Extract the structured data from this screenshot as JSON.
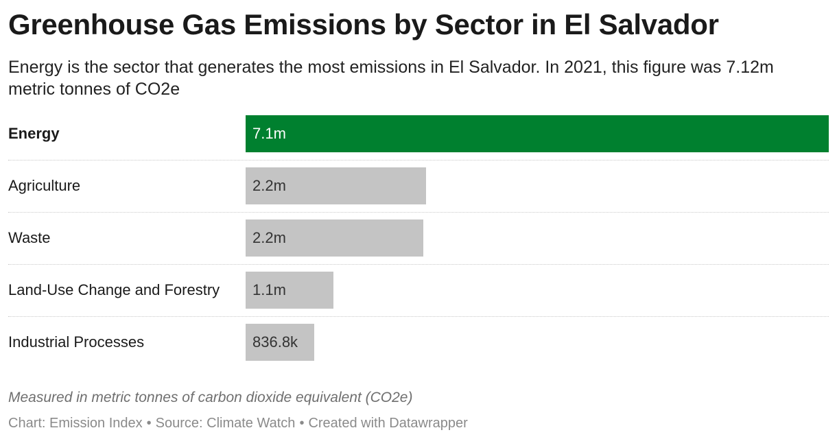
{
  "header": {
    "title": "Greenhouse Gas Emissions by Sector in El Salvador",
    "subtitle": "Energy is the sector that generates the most emissions in El Salvador. In 2021, this figure was 7.12m metric tonnes of CO2e"
  },
  "chart_data": {
    "type": "bar",
    "orientation": "horizontal",
    "title": "Greenhouse Gas Emissions by Sector in El Salvador",
    "categories": [
      "Energy",
      "Agriculture",
      "Waste",
      "Land-Use Change and Forestry",
      "Industrial Processes"
    ],
    "values": [
      7120000,
      2200000,
      2170000,
      1070000,
      836800
    ],
    "labels": [
      "7.1m",
      "2.2m",
      "2.2m",
      "1.1m",
      "836.8k"
    ],
    "highlight": "Energy",
    "colors": {
      "highlight": "#00802f",
      "default": "#c4c4c4",
      "highlight_text": "#ffffff",
      "default_text": "#333333"
    },
    "xlim": [
      0,
      7120000
    ],
    "grid": false
  },
  "notes": "Measured in metric tonnes of carbon dioxide equivalent (CO2e)",
  "footer": {
    "chart_credit": "Chart: Emission Index",
    "source": "Source: Climate Watch",
    "created_with": "Created with Datawrapper",
    "separator": "•"
  }
}
